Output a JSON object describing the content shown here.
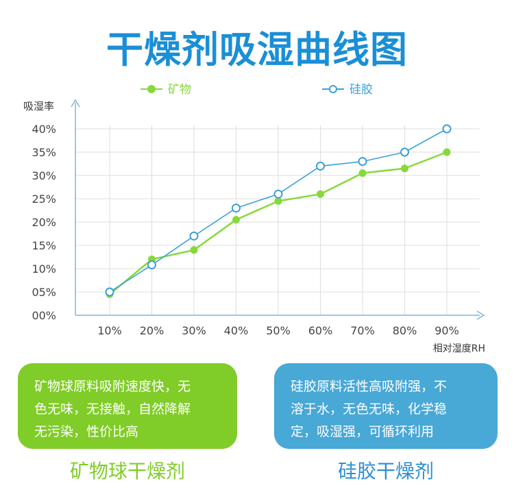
{
  "title": "干燥剂吸湿曲线图",
  "chart_data": {
    "type": "line",
    "ylabel": "吸湿率",
    "xlabel": "相对湿度RH",
    "categories": [
      "10%",
      "20%",
      "30%",
      "40%",
      "50%",
      "60%",
      "70%",
      "80%",
      "90%"
    ],
    "y_ticks": [
      "00%",
      "05%",
      "10%",
      "15%",
      "20%",
      "25%",
      "30%",
      "35%",
      "40%"
    ],
    "ylim": [
      0,
      40
    ],
    "grid": true,
    "legend_position": "top",
    "series": [
      {
        "name": "矿物",
        "marker": "filled",
        "color": "#86d93a",
        "values": [
          4.5,
          12,
          14,
          20.5,
          24.5,
          26,
          30.5,
          31.5,
          35
        ]
      },
      {
        "name": "硅胶",
        "marker": "hollow",
        "color": "#3aa0d8",
        "values": [
          5,
          10.8,
          17,
          23,
          26,
          32,
          33,
          35,
          40
        ]
      }
    ]
  },
  "cards": {
    "mineral": {
      "line1": "矿物球原料吸附速度快，无",
      "line2": "色无味，无接触，自然降解",
      "line3": "无污染，性价比高"
    },
    "silica": {
      "line1": "硅胶原料活性高吸附强，不",
      "line2": "溶于水，无色无味，化学稳",
      "line3": "定，吸湿强，可循环利用"
    }
  },
  "products": {
    "mineral": "矿物球干燥剂",
    "silica": "硅胶干燥剂"
  }
}
